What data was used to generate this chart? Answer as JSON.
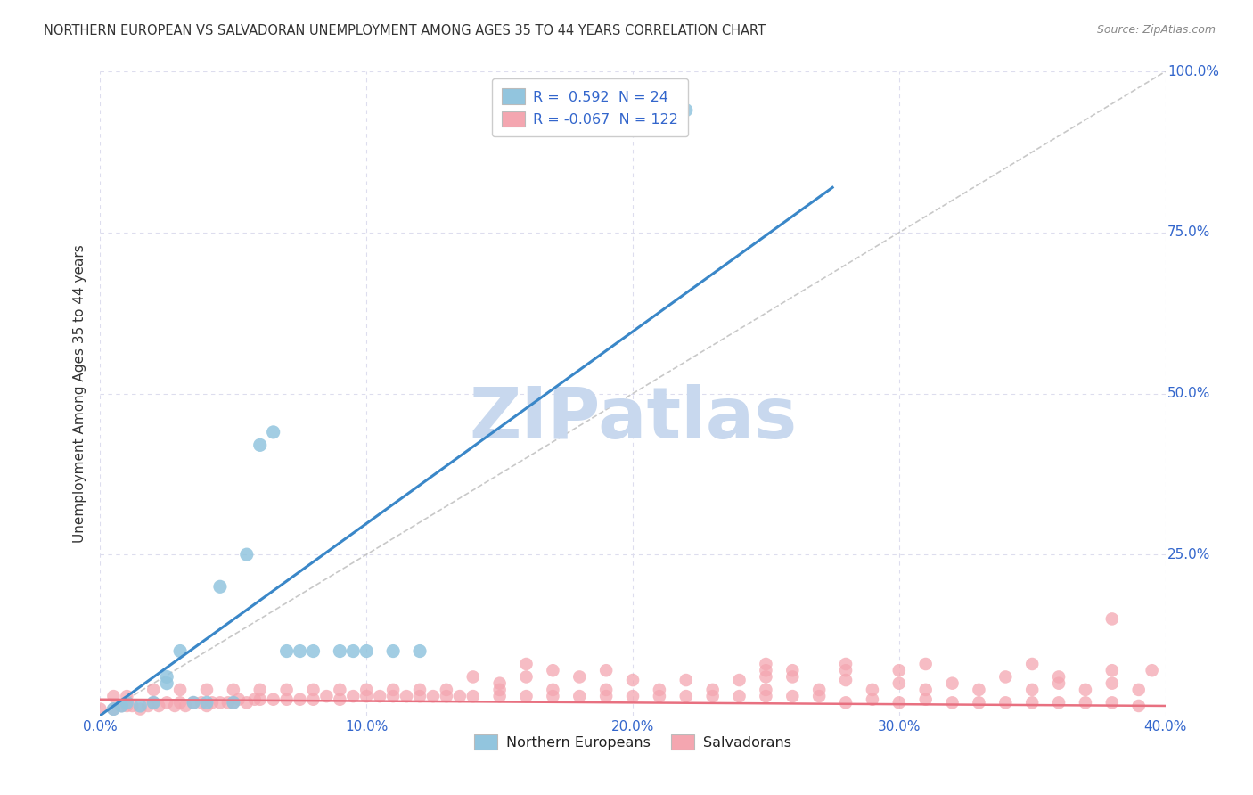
{
  "title": "NORTHERN EUROPEAN VS SALVADORAN UNEMPLOYMENT AMONG AGES 35 TO 44 YEARS CORRELATION CHART",
  "source": "Source: ZipAtlas.com",
  "ylabel": "Unemployment Among Ages 35 to 44 years",
  "xlim": [
    0.0,
    0.4
  ],
  "ylim": [
    0.0,
    1.0
  ],
  "xtick_labels": [
    "0.0%",
    "10.0%",
    "20.0%",
    "30.0%",
    "40.0%"
  ],
  "xtick_values": [
    0.0,
    0.1,
    0.2,
    0.3,
    0.4
  ],
  "ytick_labels": [
    "25.0%",
    "50.0%",
    "75.0%",
    "100.0%"
  ],
  "ytick_values": [
    0.25,
    0.5,
    0.75,
    1.0
  ],
  "blue_R": 0.592,
  "blue_N": 24,
  "pink_R": -0.067,
  "pink_N": 122,
  "blue_color": "#92C5DE",
  "pink_color": "#F4A6B0",
  "blue_line_color": "#3A87C8",
  "pink_line_color": "#E87080",
  "ref_line_color": "#BBBBBB",
  "watermark_color": "#C8D8EE",
  "background_color": "#FFFFFF",
  "grid_color": "#DDDDEE",
  "title_color": "#333333",
  "source_color": "#888888",
  "axis_label_color": "#3366CC",
  "legend_label_color": "#222222",
  "blue_scatter_x": [
    0.005,
    0.008,
    0.01,
    0.015,
    0.02,
    0.025,
    0.025,
    0.03,
    0.035,
    0.04,
    0.045,
    0.05,
    0.055,
    0.06,
    0.065,
    0.07,
    0.075,
    0.08,
    0.09,
    0.095,
    0.1,
    0.11,
    0.12,
    0.22
  ],
  "blue_scatter_y": [
    0.01,
    0.015,
    0.02,
    0.015,
    0.02,
    0.05,
    0.06,
    0.1,
    0.02,
    0.02,
    0.2,
    0.02,
    0.25,
    0.42,
    0.44,
    0.1,
    0.1,
    0.1,
    0.1,
    0.1,
    0.1,
    0.1,
    0.1,
    0.94
  ],
  "pink_scatter_x": [
    0.0,
    0.005,
    0.008,
    0.01,
    0.012,
    0.015,
    0.018,
    0.02,
    0.022,
    0.025,
    0.028,
    0.03,
    0.032,
    0.035,
    0.038,
    0.04,
    0.042,
    0.045,
    0.048,
    0.05,
    0.052,
    0.055,
    0.058,
    0.06,
    0.065,
    0.07,
    0.075,
    0.08,
    0.085,
    0.09,
    0.095,
    0.1,
    0.105,
    0.11,
    0.115,
    0.12,
    0.125,
    0.13,
    0.135,
    0.14,
    0.15,
    0.16,
    0.17,
    0.18,
    0.19,
    0.2,
    0.21,
    0.22,
    0.23,
    0.24,
    0.25,
    0.26,
    0.27,
    0.28,
    0.29,
    0.3,
    0.31,
    0.32,
    0.33,
    0.34,
    0.35,
    0.36,
    0.37,
    0.38,
    0.39,
    0.005,
    0.01,
    0.02,
    0.03,
    0.04,
    0.05,
    0.06,
    0.07,
    0.08,
    0.09,
    0.1,
    0.11,
    0.12,
    0.13,
    0.15,
    0.17,
    0.19,
    0.21,
    0.23,
    0.25,
    0.27,
    0.29,
    0.31,
    0.33,
    0.35,
    0.37,
    0.39,
    0.15,
    0.2,
    0.22,
    0.24,
    0.28,
    0.3,
    0.32,
    0.36,
    0.38,
    0.14,
    0.16,
    0.18,
    0.25,
    0.26,
    0.34,
    0.36,
    0.38,
    0.17,
    0.19,
    0.25,
    0.26,
    0.28,
    0.3,
    0.38,
    0.395,
    0.16,
    0.25,
    0.28,
    0.31,
    0.35
  ],
  "pink_scatter_y": [
    0.01,
    0.01,
    0.015,
    0.015,
    0.015,
    0.01,
    0.015,
    0.02,
    0.015,
    0.02,
    0.015,
    0.02,
    0.015,
    0.02,
    0.02,
    0.015,
    0.02,
    0.02,
    0.02,
    0.02,
    0.025,
    0.02,
    0.025,
    0.025,
    0.025,
    0.025,
    0.025,
    0.025,
    0.03,
    0.025,
    0.03,
    0.03,
    0.03,
    0.03,
    0.03,
    0.03,
    0.03,
    0.03,
    0.03,
    0.03,
    0.03,
    0.03,
    0.03,
    0.03,
    0.03,
    0.03,
    0.03,
    0.03,
    0.03,
    0.03,
    0.03,
    0.03,
    0.03,
    0.02,
    0.025,
    0.02,
    0.025,
    0.02,
    0.02,
    0.02,
    0.02,
    0.02,
    0.02,
    0.02,
    0.015,
    0.03,
    0.03,
    0.04,
    0.04,
    0.04,
    0.04,
    0.04,
    0.04,
    0.04,
    0.04,
    0.04,
    0.04,
    0.04,
    0.04,
    0.04,
    0.04,
    0.04,
    0.04,
    0.04,
    0.04,
    0.04,
    0.04,
    0.04,
    0.04,
    0.04,
    0.04,
    0.04,
    0.05,
    0.055,
    0.055,
    0.055,
    0.055,
    0.05,
    0.05,
    0.05,
    0.05,
    0.06,
    0.06,
    0.06,
    0.06,
    0.06,
    0.06,
    0.06,
    0.15,
    0.07,
    0.07,
    0.07,
    0.07,
    0.07,
    0.07,
    0.07,
    0.07,
    0.08,
    0.08,
    0.08,
    0.08,
    0.08
  ],
  "blue_trend_x": [
    0.0,
    0.275
  ],
  "blue_trend_y": [
    0.0,
    0.82
  ],
  "pink_trend_x": [
    0.0,
    0.4
  ],
  "pink_trend_y": [
    0.025,
    0.015
  ]
}
